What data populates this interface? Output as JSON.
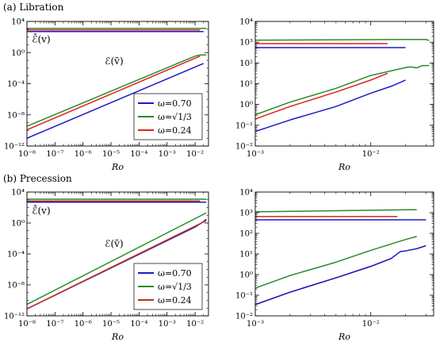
{
  "figure": {
    "labels": {
      "a": "(a) Libration",
      "b": "(b) Precession"
    }
  },
  "chart_data": [
    {
      "type": "line",
      "panel": "a-left",
      "xscale": "log",
      "yscale": "log",
      "xlim": [
        1e-08,
        0.03
      ],
      "ylim": [
        1e-12,
        10000
      ],
      "xlabel": "Ro",
      "xticks": [
        1e-08,
        1e-07,
        1e-06,
        1e-05,
        0.0001,
        0.001,
        0.01
      ],
      "xtick_labels": [
        "10⁻⁸",
        "10⁻⁷",
        "10⁻⁶",
        "10⁻⁵",
        "10⁻⁴",
        "10⁻³",
        "10⁻²"
      ],
      "yticks": [
        1e-12,
        1e-08,
        0.0001,
        1,
        10000
      ],
      "ytick_labels": [
        "10⁻¹²",
        "10⁻⁸",
        "10⁻⁴",
        "10⁰",
        "10⁴"
      ],
      "annotations": [
        {
          "text": "ℰ̄(v)",
          "x": 1.5e-08,
          "y": 20
        },
        {
          "text": "ℰ(v̄)",
          "x": 6e-06,
          "y": 0.03
        }
      ],
      "legend": {
        "position": "bottom-right",
        "entries": [
          {
            "label": "ω=0.70",
            "color": "#1a1ac8"
          },
          {
            "label": "ω=√1/3",
            "color": "#2b8a2b"
          },
          {
            "label": "ω=0.24",
            "color": "#e02020"
          }
        ]
      },
      "series": [
        {
          "color": "#1a1ac8",
          "x": [
            1e-08,
            0.02
          ],
          "y": [
            1e-11,
            0.04
          ]
        },
        {
          "color": "#2b8a2b",
          "x": [
            1e-08,
            0.01,
            0.015,
            0.025
          ],
          "y": [
            3.5e-10,
            0.35,
            0.5,
            0.5
          ]
        },
        {
          "color": "#e02020",
          "x": [
            1e-08,
            0.015
          ],
          "y": [
            1.2e-10,
            0.35
          ]
        },
        {
          "color": "#1a1ac8",
          "x": [
            1e-08,
            0.02
          ],
          "y": [
            500,
            500
          ]
        },
        {
          "color": "#2b8a2b",
          "x": [
            1e-08,
            0.025
          ],
          "y": [
            1300,
            1300
          ]
        },
        {
          "color": "#e02020",
          "x": [
            1e-08,
            0.015
          ],
          "y": [
            800,
            800
          ]
        }
      ]
    },
    {
      "type": "line",
      "panel": "a-right",
      "xscale": "log",
      "yscale": "log",
      "xlim": [
        0.001,
        0.035
      ],
      "ylim": [
        0.01,
        10000
      ],
      "xlabel": "Ro",
      "xticks": [
        0.001,
        0.01
      ],
      "xtick_labels": [
        "10⁻³",
        "10⁻²"
      ],
      "yticks": [
        0.01,
        0.1,
        1,
        10,
        100,
        1000,
        10000
      ],
      "ytick_labels": [
        "10⁻²",
        "10⁻¹",
        "10⁰",
        "10¹",
        "10²",
        "10³",
        "10⁴"
      ],
      "series": [
        {
          "color": "#1a1ac8",
          "x": [
            0.001,
            0.02
          ],
          "y": [
            550,
            550
          ]
        },
        {
          "color": "#e02020",
          "x": [
            0.001,
            0.014
          ],
          "y": [
            850,
            850
          ]
        },
        {
          "color": "#2b8a2b",
          "x": [
            0.001,
            0.02,
            0.03,
            0.032
          ],
          "y": [
            1250,
            1350,
            1350,
            1200
          ]
        },
        {
          "color": "#1a1ac8",
          "x": [
            0.001,
            0.002,
            0.005,
            0.01,
            0.015,
            0.02
          ],
          "y": [
            0.05,
            0.18,
            0.8,
            3.5,
            7.5,
            15
          ]
        },
        {
          "color": "#e02020",
          "x": [
            0.001,
            0.002,
            0.005,
            0.01,
            0.014
          ],
          "y": [
            0.2,
            0.8,
            4,
            15,
            32
          ]
        },
        {
          "color": "#2b8a2b",
          "x": [
            0.001,
            0.002,
            0.005,
            0.01,
            0.02,
            0.022,
            0.025,
            0.028,
            0.032
          ],
          "y": [
            0.32,
            1.3,
            6,
            25,
            60,
            65,
            58,
            75,
            75
          ]
        }
      ]
    },
    {
      "type": "line",
      "panel": "b-left",
      "xscale": "log",
      "yscale": "log",
      "xlim": [
        1e-08,
        0.03
      ],
      "ylim": [
        1e-12,
        10000
      ],
      "xlabel": "Ro",
      "xticks": [
        1e-08,
        1e-07,
        1e-06,
        1e-05,
        0.0001,
        0.001,
        0.01
      ],
      "xtick_labels": [
        "10⁻⁸",
        "10⁻⁷",
        "10⁻⁶",
        "10⁻⁵",
        "10⁻⁴",
        "10⁻³",
        "10⁻²"
      ],
      "yticks": [
        1e-12,
        1e-08,
        0.0001,
        1,
        10000
      ],
      "ytick_labels": [
        "10⁻¹²",
        "10⁻⁸",
        "10⁻⁴",
        "10⁰",
        "10⁴"
      ],
      "annotations": [
        {
          "text": "ℰ̄(v)",
          "x": 1.5e-08,
          "y": 15
        },
        {
          "text": "ℰ(v̄)",
          "x": 6e-06,
          "y": 0.0008
        }
      ],
      "legend": {
        "position": "bottom-right",
        "entries": [
          {
            "label": "ω=0.70",
            "color": "#1a1ac8"
          },
          {
            "label": "ω=√1/3",
            "color": "#2b8a2b"
          },
          {
            "label": "ω=0.24",
            "color": "#c0301c"
          }
        ]
      },
      "series": [
        {
          "color": "#1a1ac8",
          "x": [
            1e-08,
            0.01,
            0.02,
            0.025
          ],
          "y": [
            8e-12,
            0.3,
            1.5,
            3
          ]
        },
        {
          "color": "#2b8a2b",
          "x": [
            1e-08,
            0.025
          ],
          "y": [
            3e-11,
            20
          ]
        },
        {
          "color": "#c0301c",
          "x": [
            1e-08,
            0.025
          ],
          "y": [
            8e-12,
            2
          ]
        },
        {
          "color": "#1a1ac8",
          "x": [
            1e-08,
            0.025
          ],
          "y": [
            500,
            500
          ]
        },
        {
          "color": "#2b8a2b",
          "x": [
            1e-08,
            0.025
          ],
          "y": [
            1200,
            1200
          ]
        },
        {
          "color": "#c0301c",
          "x": [
            1e-08,
            0.015
          ],
          "y": [
            700,
            700
          ]
        }
      ]
    },
    {
      "type": "line",
      "panel": "b-right",
      "xscale": "log",
      "yscale": "log",
      "xlim": [
        0.001,
        0.035
      ],
      "ylim": [
        0.01,
        10000
      ],
      "xlabel": "Ro",
      "xticks": [
        0.001,
        0.01
      ],
      "xtick_labels": [
        "10⁻³",
        "10⁻²"
      ],
      "yticks": [
        0.01,
        0.1,
        1,
        10,
        100,
        1000,
        10000
      ],
      "ytick_labels": [
        "10⁻²",
        "10⁻¹",
        "10⁰",
        "10¹",
        "10²",
        "10³",
        "10⁴"
      ],
      "series": [
        {
          "color": "#1a1ac8",
          "x": [
            0.001,
            0.03
          ],
          "y": [
            450,
            450
          ]
        },
        {
          "color": "#c0301c",
          "x": [
            0.001,
            0.017
          ],
          "y": [
            650,
            650
          ]
        },
        {
          "color": "#2b8a2b",
          "x": [
            0.001,
            0.025
          ],
          "y": [
            1100,
            1400
          ]
        },
        {
          "color": "#2b8a2b",
          "x": [
            0.001,
            0.002,
            0.005,
            0.01,
            0.02,
            0.025
          ],
          "y": [
            0.22,
            0.9,
            4,
            15,
            50,
            70
          ]
        },
        {
          "color": "#c0301c",
          "x": [
            0.001,
            0.002,
            0.005,
            0.01,
            0.015
          ],
          "y": [
            0.035,
            0.14,
            0.7,
            2.5,
            6
          ]
        },
        {
          "color": "#1a1ac8",
          "x": [
            0.001,
            0.002,
            0.005,
            0.01,
            0.015,
            0.018,
            0.02,
            0.025,
            0.03
          ],
          "y": [
            0.035,
            0.14,
            0.7,
            2.5,
            6,
            13,
            14,
            18,
            25
          ]
        }
      ]
    }
  ]
}
